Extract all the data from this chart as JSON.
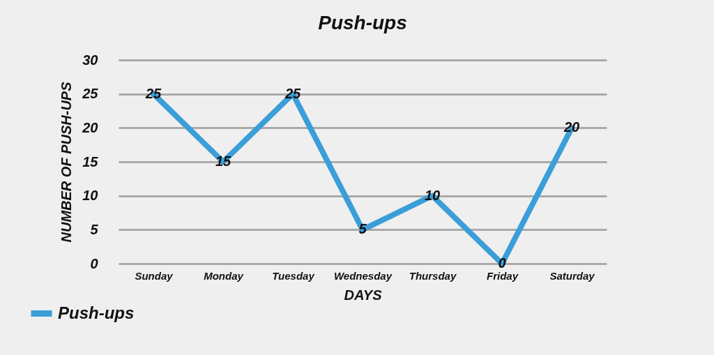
{
  "chart_data": {
    "type": "line",
    "title": "Push-ups",
    "xlabel": "DAYS",
    "ylabel": "NUMBER OF PUSH-UPS",
    "categories": [
      "Sunday",
      "Monday",
      "Tuesday",
      "Wednesday",
      "Thursday",
      "Friday",
      "Saturday"
    ],
    "series": [
      {
        "name": "Push-ups",
        "color": "#3b9ed8",
        "values": [
          25,
          15,
          25,
          5,
          10,
          0,
          20
        ]
      }
    ],
    "ylim": [
      0,
      30
    ],
    "yticks": [
      0,
      5,
      10,
      15,
      20,
      25,
      30
    ],
    "grid": "y",
    "legend": "bottom left",
    "data_labels": true,
    "marker": "none",
    "line_style": "solid"
  }
}
